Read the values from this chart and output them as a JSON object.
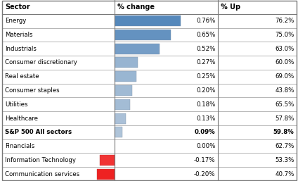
{
  "sectors": [
    "Energy",
    "Materials",
    "Industrials",
    "Consumer discretionary",
    "Real estate",
    "Consumer staples",
    "Utilities",
    "Healthcare",
    "S&P 500 All sectors",
    "Financials",
    "Information Technology",
    "Communication services"
  ],
  "pct_change": [
    0.76,
    0.65,
    0.52,
    0.27,
    0.25,
    0.2,
    0.18,
    0.13,
    0.09,
    0.0,
    -0.17,
    -0.2
  ],
  "pct_up": [
    "76.2%",
    "75.0%",
    "63.0%",
    "60.0%",
    "69.0%",
    "43.8%",
    "65.5%",
    "57.8%",
    "59.8%",
    "62.7%",
    "53.3%",
    "40.7%"
  ],
  "pct_change_labels": [
    "0.76%",
    "0.65%",
    "0.52%",
    "0.27%",
    "0.25%",
    "0.20%",
    "0.18%",
    "0.13%",
    "0.09%",
    "0.00%",
    "-0.17%",
    "-0.20%"
  ],
  "bold_row": 8,
  "positive_color_dark": "#5588BB",
  "positive_color_light": "#AACCEE",
  "negative_color_dark": "#EE2222",
  "negative_color_light": "#FF9999",
  "figure_bg": "#FFFFFF",
  "border_color": "#AAAAAA",
  "header_text": [
    "Sector",
    "% change",
    "% Up"
  ],
  "max_val": 0.76,
  "min_val": -0.2,
  "fig_width": 4.24,
  "fig_height": 2.57,
  "dpi": 100
}
